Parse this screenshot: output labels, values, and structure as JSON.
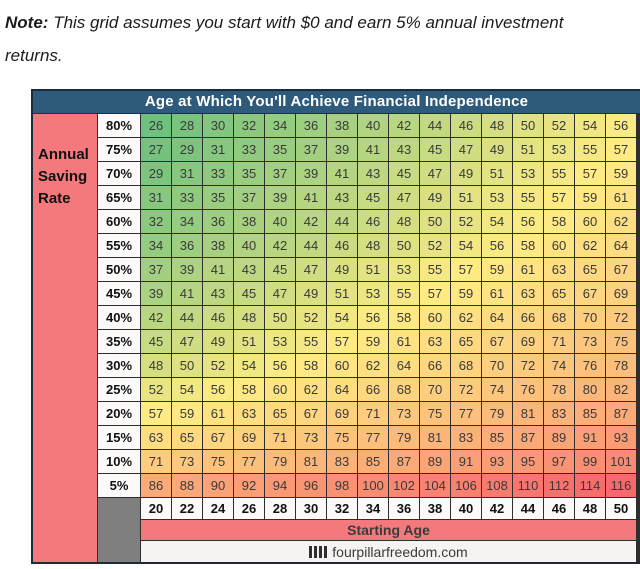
{
  "note": {
    "label": "Note:",
    "text": "This grid assumes you start with $0 and earn 5% annual investment returns."
  },
  "table": {
    "title": "Age at Which You'll Achieve Financial Independence",
    "y_axis_label": "Annual Saving Rate",
    "x_axis_label": "Starting Age",
    "footer_icon": "four-pillar-bars",
    "footer_brand": "fourpillarfreedom.com"
  },
  "colors": {
    "title_bg": "#2E5A7C",
    "title_text": "#FFFFFF",
    "axis_band_pink": "#F4797D",
    "corner_gray": "#7F7F7F",
    "header_cell_bg": "#FCFAF9",
    "footer_bg": "#F6F3F2",
    "grid_line": "#2E2E2E",
    "cell_text": "#3A3A3A"
  },
  "chart_data": {
    "type": "heatmap",
    "title": "Age at Which You'll Achieve Financial Independence",
    "xlabel": "Starting Age",
    "ylabel": "Annual Saving Rate",
    "x_categories": [
      20,
      22,
      24,
      26,
      28,
      30,
      32,
      34,
      36,
      38,
      40,
      42,
      44,
      46,
      48,
      50
    ],
    "y_categories": [
      "80%",
      "75%",
      "70%",
      "65%",
      "60%",
      "55%",
      "50%",
      "45%",
      "40%",
      "35%",
      "30%",
      "25%",
      "20%",
      "15%",
      "10%",
      "5%"
    ],
    "series": [
      {
        "rate": "80%",
        "values": [
          26,
          28,
          30,
          32,
          34,
          36,
          38,
          40,
          42,
          44,
          46,
          48,
          50,
          52,
          54,
          56
        ]
      },
      {
        "rate": "75%",
        "values": [
          27,
          29,
          31,
          33,
          35,
          37,
          39,
          41,
          43,
          45,
          47,
          49,
          51,
          53,
          55,
          57
        ]
      },
      {
        "rate": "70%",
        "values": [
          29,
          31,
          33,
          35,
          37,
          39,
          41,
          43,
          45,
          47,
          49,
          51,
          53,
          55,
          57,
          59
        ]
      },
      {
        "rate": "65%",
        "values": [
          31,
          33,
          35,
          37,
          39,
          41,
          43,
          45,
          47,
          49,
          51,
          53,
          55,
          57,
          59,
          61
        ]
      },
      {
        "rate": "60%",
        "values": [
          32,
          34,
          36,
          38,
          40,
          42,
          44,
          46,
          48,
          50,
          52,
          54,
          56,
          58,
          60,
          62
        ]
      },
      {
        "rate": "55%",
        "values": [
          34,
          36,
          38,
          40,
          42,
          44,
          46,
          48,
          50,
          52,
          54,
          56,
          58,
          60,
          62,
          64
        ]
      },
      {
        "rate": "50%",
        "values": [
          37,
          39,
          41,
          43,
          45,
          47,
          49,
          51,
          53,
          55,
          57,
          59,
          61,
          63,
          65,
          67
        ]
      },
      {
        "rate": "45%",
        "values": [
          39,
          41,
          43,
          45,
          47,
          49,
          51,
          53,
          55,
          57,
          59,
          61,
          63,
          65,
          67,
          69
        ]
      },
      {
        "rate": "40%",
        "values": [
          42,
          44,
          46,
          48,
          50,
          52,
          54,
          56,
          58,
          60,
          62,
          64,
          66,
          68,
          70,
          72
        ]
      },
      {
        "rate": "35%",
        "values": [
          45,
          47,
          49,
          51,
          53,
          55,
          57,
          59,
          61,
          63,
          65,
          67,
          69,
          71,
          73,
          75
        ]
      },
      {
        "rate": "30%",
        "values": [
          48,
          50,
          52,
          54,
          56,
          58,
          60,
          62,
          64,
          66,
          68,
          70,
          72,
          74,
          76,
          78
        ]
      },
      {
        "rate": "25%",
        "values": [
          52,
          54,
          56,
          58,
          60,
          62,
          64,
          66,
          68,
          70,
          72,
          74,
          76,
          78,
          80,
          82
        ]
      },
      {
        "rate": "20%",
        "values": [
          57,
          59,
          61,
          63,
          65,
          67,
          69,
          71,
          73,
          75,
          77,
          79,
          81,
          83,
          85,
          87
        ]
      },
      {
        "rate": "15%",
        "values": [
          63,
          65,
          67,
          69,
          71,
          73,
          75,
          77,
          79,
          81,
          83,
          85,
          87,
          89,
          91,
          93
        ]
      },
      {
        "rate": "10%",
        "values": [
          71,
          73,
          75,
          77,
          79,
          81,
          83,
          85,
          87,
          89,
          91,
          93,
          95,
          97,
          99,
          101
        ]
      },
      {
        "rate": "5%",
        "values": [
          86,
          88,
          90,
          92,
          94,
          96,
          98,
          100,
          102,
          104,
          106,
          108,
          110,
          112,
          114,
          116
        ]
      }
    ],
    "value_range": [
      26,
      116
    ],
    "colorscale": {
      "min_color": "#6FC17E",
      "mid_color": "#FFEB84",
      "max_color": "#F8696B",
      "midpoint": "median"
    },
    "legend": "none",
    "grid": true
  }
}
